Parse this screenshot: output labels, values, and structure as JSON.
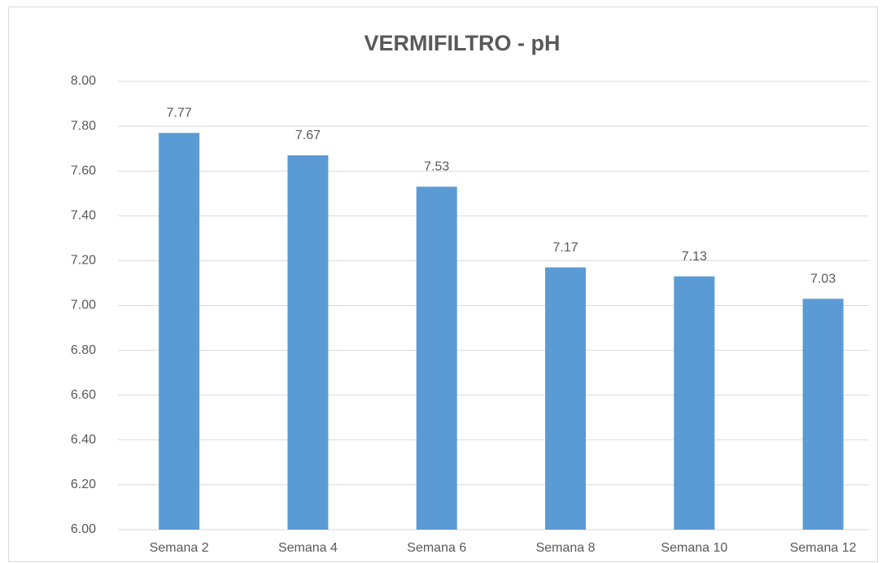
{
  "chart_data": {
    "type": "bar",
    "title": "VERMIFILTRO - pH",
    "categories": [
      "Semana 2",
      "Semana 4",
      "Semana 6",
      "Semana 8",
      "Semana 10",
      "Semana 12"
    ],
    "values": [
      7.77,
      7.67,
      7.53,
      7.17,
      7.13,
      7.03
    ],
    "color": "#5b9bd5",
    "ylim": [
      6,
      8
    ],
    "yticks": [
      {
        "value": 6,
        "label": "6.00"
      },
      {
        "value": 6.2,
        "label": "6.20"
      },
      {
        "value": 6.4,
        "label": "6.40"
      },
      {
        "value": 6.6,
        "label": "6.60"
      },
      {
        "value": 6.8,
        "label": "6.80"
      },
      {
        "value": 7,
        "label": "7.00"
      },
      {
        "value": 7.2,
        "label": "7.20"
      },
      {
        "value": 7.4,
        "label": "7.40"
      },
      {
        "value": 7.6,
        "label": "7.60"
      },
      {
        "value": 7.8,
        "label": "7.80"
      },
      {
        "value": 8,
        "label": "8.00"
      }
    ],
    "grid": true
  }
}
